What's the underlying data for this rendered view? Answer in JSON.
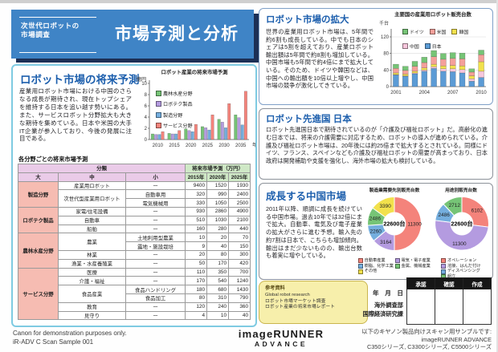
{
  "banner": {
    "subtitle_line1": "次世代ロボットの",
    "subtitle_line2": "市場調査",
    "title": "市場予測と分析",
    "bg_color": "#3f84c6",
    "shadow_color": "#1c2f55"
  },
  "sections": {
    "future": {
      "heading": "ロボット市場の将来予測",
      "body": "産業用ロボット市場における中国のさらなる成長が期待され、現在トップシェアを維持する日本を追い越す勢いにある。また、サービスロボット分野拡大も大きな期待を集めている。日本や米国の大手IT企業が参入しており、今後の発展に注目である。"
    },
    "expansion": {
      "heading": "ロボット市場の拡大",
      "body": "世界の産業用ロボット市場は、5年間で約6割も成長している。中でも日本のシェアは5割を超えており、産業ロボット輸出額は5年間で約8割も増加している。中国市場も5年間で約4倍にまで拡大している。そのため、ドイツや韓国などは、中国への輸出額を10倍以上増やし、中国市場の競争が激化してきている。"
    },
    "japan": {
      "heading": "ロボット先進国 日本",
      "body": "ロボット先進国日本で期待されているのが「介護及び福祉ロボット」だ。高齢化の進む日本では、将来の介護需要に対応するため、ロボットの導入が進められている。介護及び福祉ロボット市場は、20年後には約25倍まで拡大するとされている。同様にドイツ、フランス、スペインなども介護及び福祉ロボットの需要が高まっており、日本政府は開発補助や支援を強化し、海外市場の拡大も検討している。"
    },
    "china": {
      "heading": "成長する中国市場",
      "body": "2011年以降、順調に成長を続けている中国市場。過去10年では32倍にまで拡大。自動車、電気及び電子産業の拡大がさらに進む予想。輸入先の約7割は日本で、こちらも増加傾向。輸出はまだ少ないものの、輸出台数も着実に増やしている。"
    }
  },
  "chart_data": [
    {
      "type": "bar",
      "title": "ロボット産業の将来市場予測",
      "unit": "億円",
      "categories": [
        "2010",
        "2015",
        "2020",
        "2025",
        "2030",
        "2035"
      ],
      "x_suffix": "年",
      "ylim": [
        0,
        10
      ],
      "yticks": [
        0,
        2,
        4,
        6,
        8,
        10
      ],
      "legend_position": "upper-left",
      "series": [
        {
          "name": "農林水産分野",
          "color": "#76c476",
          "values": [
            1.0,
            1.1,
            1.9,
            2.3,
            3.6,
            4.4
          ]
        },
        {
          "name": "ロボテク製品",
          "color": "#b49be0",
          "values": [
            0.9,
            1.0,
            1.6,
            2.1,
            3.1,
            3.9
          ]
        },
        {
          "name": "製造分野",
          "color": "#74aede",
          "values": [
            0.9,
            1.0,
            1.4,
            1.7,
            2.1,
            2.6
          ]
        },
        {
          "name": "サービス分野",
          "color": "#f4837b",
          "values": [
            1.4,
            1.6,
            2.7,
            4.4,
            6.4,
            8.6
          ]
        }
      ]
    },
    {
      "type": "bar-stacked",
      "title": "主要国の産業用ロボット販売台数",
      "unit": "千台",
      "categories": [
        "2001",
        "2002",
        "2003",
        "2004",
        "2005",
        "2006",
        "2007",
        "2008",
        "2009",
        "2010"
      ],
      "x_labels_shown": [
        "2001",
        "2004",
        "2007",
        "2010"
      ],
      "ylim": [
        0,
        120
      ],
      "yticks": [
        0,
        40,
        80,
        120
      ],
      "legend_order": [
        "ドイツ",
        "米国",
        "韓国",
        "中国",
        "日本"
      ],
      "series": [
        {
          "name": "日本",
          "color": "#5b9bd5",
          "values": [
            28,
            25,
            31,
            37,
            44,
            37,
            36,
            33,
            13,
            22
          ]
        },
        {
          "name": "中国",
          "color": "#f7c6dc",
          "values": [
            1,
            1,
            2,
            3,
            4,
            6,
            7,
            8,
            6,
            15
          ]
        },
        {
          "name": "韓国",
          "color": "#f2e14c",
          "values": [
            4,
            4,
            4,
            5,
            6,
            7,
            8,
            9,
            7,
            23
          ]
        },
        {
          "name": "米国",
          "color": "#f4a09a",
          "values": [
            11,
            9,
            12,
            13,
            18,
            16,
            17,
            17,
            9,
            17
          ]
        },
        {
          "name": "ドイツ",
          "color": "#76c476",
          "values": [
            10,
            10,
            12,
            13,
            15,
            14,
            14,
            14,
            8,
            11
          ]
        }
      ]
    },
    {
      "type": "pie",
      "title": "製造業需要先別販売台数",
      "center_label": "22600台",
      "slices": [
        {
          "name": "自動車産業",
          "value": 11300,
          "color": "#f4837b"
        },
        {
          "name": "電気・電子産業",
          "value": 3164,
          "color": "#b49be0"
        },
        {
          "name": "樹脂、化学工業",
          "value": 2260,
          "color": "#74aede"
        },
        {
          "name": "金属、機械産業",
          "value": 2486,
          "color": "#76c476"
        },
        {
          "name": "その他",
          "value": 3390,
          "color": "#f2e14c"
        }
      ],
      "legend_columns": [
        [
          "自動車産業",
          "樹脂、化学工業",
          "その他"
        ],
        [
          "電気・電子産業",
          "金属、機械産業"
        ]
      ]
    },
    {
      "type": "pie",
      "title": "用途別販売台数",
      "center_label": "22600台",
      "slices": [
        {
          "name": "オペレーション",
          "value": 6102,
          "color": "#f4837b"
        },
        {
          "name": "溶接、はんだ付け",
          "value": 11300,
          "color": "#b49be0"
        },
        {
          "name": "ディスペンシング",
          "value": 2486,
          "color": "#74aede"
        },
        {
          "name": "組立",
          "value": 2712,
          "color": "#76c476"
        }
      ]
    }
  ],
  "table": {
    "caption": "各分野ごとの将来市場予測",
    "header": {
      "bunrui": "分類",
      "forecast": "将来市場予測（万円）",
      "dai": "大",
      "chu": "中",
      "sho": "小",
      "years": [
        "2015年",
        "2020年",
        "2025年"
      ]
    },
    "rows": [
      {
        "dai": "製造分野",
        "daiSpan": 3,
        "chu": "産業用ロボット",
        "chuSpan": 1,
        "sho": "ー",
        "v": [
          "9400",
          "1520",
          "1930"
        ]
      },
      {
        "chu": "次世代型産業用ロボット",
        "chuSpan": 2,
        "sho": "自動車用",
        "v": [
          "320",
          "990",
          "2400"
        ]
      },
      {
        "sho": "電気機械用",
        "v": [
          "330",
          "1050",
          "2500"
        ]
      },
      {
        "dai": "ロボテク製品",
        "daiSpan": 3,
        "chu": "家電/住宅設備",
        "chuSpan": 1,
        "sho": "ー",
        "v": [
          "930",
          "2860",
          "4900"
        ]
      },
      {
        "chu": "自動車",
        "chuSpan": 1,
        "sho": "ー",
        "v": [
          "510",
          "1030",
          "2100"
        ]
      },
      {
        "chu": "船舶",
        "chuSpan": 1,
        "sho": "ー",
        "v": [
          "160",
          "280",
          "440"
        ]
      },
      {
        "dai": "農林水産分野",
        "daiSpan": 4,
        "chu": "農業",
        "chuSpan": 2,
        "sho": "土地利用型農業",
        "v": [
          "10",
          "20",
          "70"
        ]
      },
      {
        "sho": "露地・施設栽培",
        "v": [
          "9",
          "40",
          "150"
        ]
      },
      {
        "chu": "林業",
        "chuSpan": 1,
        "sho": "ー",
        "v": [
          "20",
          "80",
          "300"
        ]
      },
      {
        "chu": "漁業・水産養殖業",
        "chuSpan": 1,
        "sho": "ー",
        "v": [
          "50",
          "170",
          "420"
        ]
      },
      {
        "dai": "サービス分野",
        "daiSpan": 6,
        "chu": "医療",
        "chuSpan": 1,
        "sho": "ー",
        "v": [
          "110",
          "350",
          "700"
        ]
      },
      {
        "chu": "介護・福祉",
        "chuSpan": 1,
        "sho": "ー",
        "v": [
          "170",
          "540",
          "1240"
        ]
      },
      {
        "chu": "食品産業",
        "chuSpan": 2,
        "sho": "食品ハンドリング",
        "v": [
          "180",
          "680",
          "1430"
        ]
      },
      {
        "sho": "食品加工",
        "v": [
          "80",
          "310",
          "790"
        ]
      },
      {
        "chu": "教育",
        "chuSpan": 1,
        "sho": "ー",
        "v": [
          "120",
          "240",
          "360"
        ]
      },
      {
        "chu": "見守り",
        "chuSpan": 1,
        "sho": "ー",
        "v": [
          "4",
          "10",
          "40"
        ]
      }
    ]
  },
  "reference": {
    "title": "参考資料",
    "lines": [
      "Global robot research",
      "ロボット市場マーケット調査",
      "ロボット産業の将来市場レポート"
    ]
  },
  "approval": {
    "date_label": "年　月　日",
    "dept_lines": [
      "海外調査部",
      "国際経済研究課"
    ],
    "columns": [
      "承認",
      "確認",
      "作成"
    ]
  },
  "footer": {
    "left_lines": [
      "Canon for demonstration purposes only.",
      "iR-ADV C Scan Sample 001"
    ],
    "logo_line1": "imageRUNNER",
    "logo_line2": "ADVANCE",
    "right_lines": [
      "以下のキヤノン製品向けスキャン用サンプルです:",
      "imageRUNNER ADVANCE",
      "C350シリーズ, C3300シリーズ, C5500シリーズ"
    ]
  }
}
